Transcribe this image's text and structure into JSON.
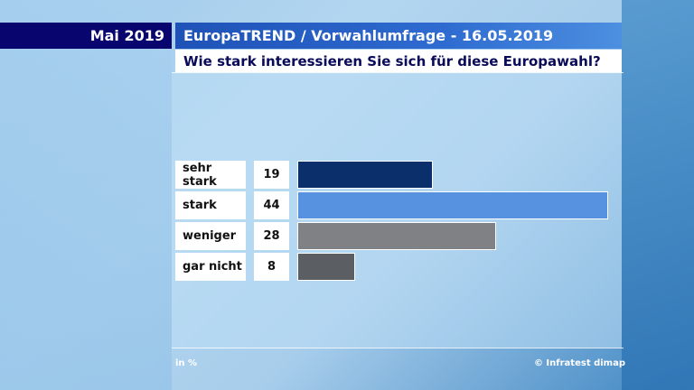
{
  "header": {
    "date": "Mai 2019",
    "title": "EuropaTREND / Vorwahlumfrage - 16.05.2019",
    "question": "Wie stark interessieren Sie sich für diese Europawahl?"
  },
  "footer": {
    "unit": "in %",
    "source": "© Infratest dimap"
  },
  "chart_data": {
    "type": "bar",
    "orientation": "horizontal",
    "title": "Wie stark interessieren Sie sich für diese Europawahl?",
    "categories": [
      "sehr stark",
      "stark",
      "weniger",
      "gar nicht"
    ],
    "values": [
      19,
      44,
      28,
      8
    ],
    "colors": [
      "#0b2f6b",
      "#5792e0",
      "#7f8184",
      "#5b5e63"
    ],
    "unit": "in %",
    "xlim": [
      0,
      44
    ],
    "grid": false,
    "legend": "none"
  }
}
